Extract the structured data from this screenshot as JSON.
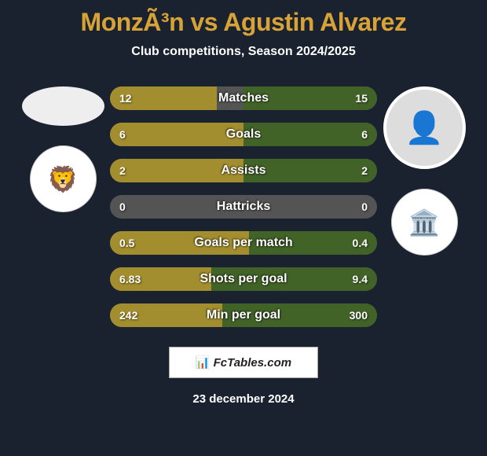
{
  "background_color": "#1a2230",
  "text_color": "#ffffff",
  "title": "MonzÃ³n vs Agustin Alvarez",
  "title_color": "#d8a336",
  "subtitle": "Club competitions, Season 2024/2025",
  "subtitle_color": "#ffffff",
  "player_left": {
    "name": "Monzón",
    "club_emoji": "🦁"
  },
  "player_right": {
    "name": "Agustin Alvarez",
    "photo_emoji": "👤",
    "club_emoji": "🏛️"
  },
  "bar_left_color": "#a38e2f",
  "bar_right_color": "#426328",
  "bar_bg_color": "#545454",
  "bars": [
    {
      "label": "Matches",
      "left_val": "12",
      "right_val": "15",
      "left_pct": 40,
      "right_pct": 50
    },
    {
      "label": "Goals",
      "left_val": "6",
      "right_val": "6",
      "left_pct": 50,
      "right_pct": 50
    },
    {
      "label": "Assists",
      "left_val": "2",
      "right_val": "2",
      "left_pct": 50,
      "right_pct": 50
    },
    {
      "label": "Hattricks",
      "left_val": "0",
      "right_val": "0",
      "left_pct": 0,
      "right_pct": 0
    },
    {
      "label": "Goals per match",
      "left_val": "0.5",
      "right_val": "0.4",
      "left_pct": 52,
      "right_pct": 48
    },
    {
      "label": "Shots per goal",
      "left_val": "6.83",
      "right_val": "9.4",
      "left_pct": 38,
      "right_pct": 62
    },
    {
      "label": "Min per goal",
      "left_val": "242",
      "right_val": "300",
      "left_pct": 42,
      "right_pct": 58
    }
  ],
  "footer_brand": "FcTables.com",
  "date": "23 december 2024"
}
